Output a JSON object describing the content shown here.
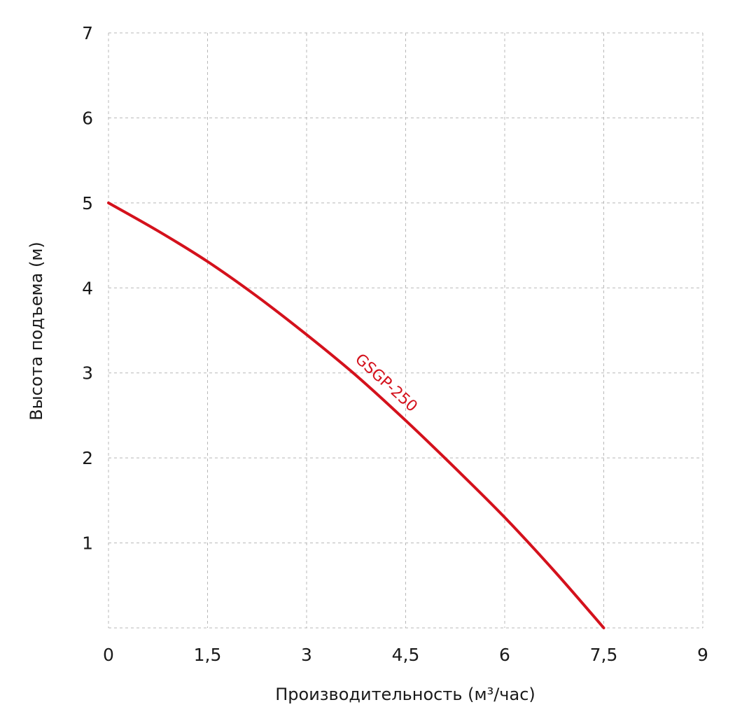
{
  "chart_data": {
    "type": "line",
    "xlabel": "Производительность (м³/час)",
    "ylabel": "Высота подъема (м)",
    "xlim": [
      0,
      9
    ],
    "ylim": [
      0,
      7
    ],
    "x_ticks": [
      0,
      1.5,
      3,
      4.5,
      6,
      7.5,
      9
    ],
    "x_tick_labels": [
      "0",
      "1,5",
      "3",
      "4,5",
      "6",
      "7,5",
      "9"
    ],
    "y_ticks": [
      1,
      2,
      3,
      4,
      5,
      6,
      7
    ],
    "y_tick_labels": [
      "1",
      "2",
      "3",
      "4",
      "5",
      "6",
      "7"
    ],
    "grid": true,
    "series": [
      {
        "name": "GSGP-250",
        "color": "#d4111c",
        "x": [
          0,
          0.75,
          1.5,
          2.25,
          3,
          3.75,
          4.5,
          5.25,
          6,
          6.75,
          7.5
        ],
        "y": [
          5,
          4.67,
          4.31,
          3.9,
          3.45,
          2.97,
          2.44,
          1.88,
          1.3,
          0.67,
          0
        ]
      }
    ]
  }
}
